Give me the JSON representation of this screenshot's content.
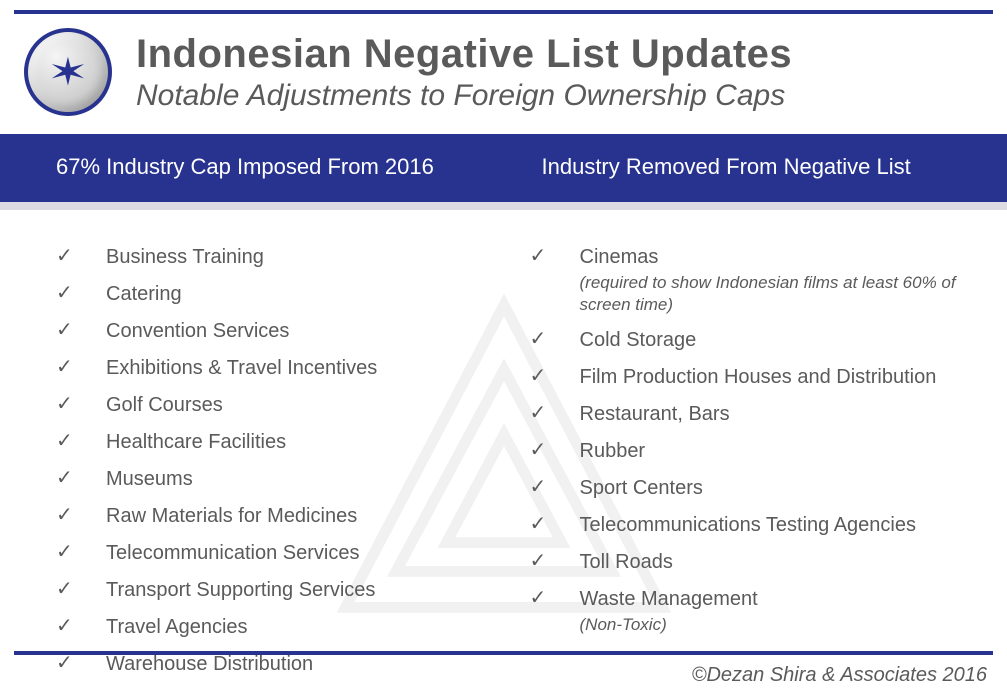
{
  "colors": {
    "brand_blue": "#27338f",
    "text_gray": "#5a5a5a",
    "light_gray_bar": "#dcdce2",
    "white": "#ffffff"
  },
  "header": {
    "title": "Indonesian Negative List Updates",
    "subtitle": "Notable Adjustments to Foreign Ownership Caps"
  },
  "columns": {
    "left": {
      "heading": "67% Industry Cap Imposed From 2016",
      "items": [
        {
          "label": "Business Training"
        },
        {
          "label": "Catering"
        },
        {
          "label": "Convention Services"
        },
        {
          "label": "Exhibitions & Travel Incentives"
        },
        {
          "label": "Golf Courses"
        },
        {
          "label": "Healthcare Facilities"
        },
        {
          "label": "Museums"
        },
        {
          "label": "Raw Materials for Medicines"
        },
        {
          "label": "Telecommunication Services"
        },
        {
          "label": "Transport Supporting Services"
        },
        {
          "label": "Travel Agencies"
        },
        {
          "label": "Warehouse Distribution"
        }
      ]
    },
    "right": {
      "heading": "Industry Removed From Negative List",
      "items": [
        {
          "label": "Cinemas",
          "note": "(required to show Indonesian films at least 60% of screen time)"
        },
        {
          "label": "Cold Storage"
        },
        {
          "label": "Film Production Houses and Distribution"
        },
        {
          "label": "Restaurant, Bars"
        },
        {
          "label": "Rubber"
        },
        {
          "label": "Sport Centers"
        },
        {
          "label": "Telecommunications Testing Agencies"
        },
        {
          "label": "Toll Roads"
        },
        {
          "label": "Waste Management",
          "note": "(Non-Toxic)"
        }
      ]
    }
  },
  "footer": {
    "credit": "©Dezan Shira & Associates 2016"
  },
  "icons": {
    "check": "✓"
  }
}
